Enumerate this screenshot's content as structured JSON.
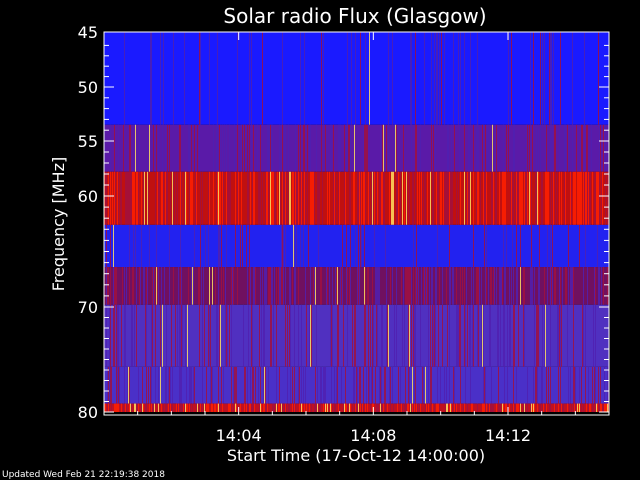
{
  "chart_data": {
    "type": "heatmap",
    "title": "Solar radio Flux (Glasgow)",
    "xlabel": "Start Time (17-Oct-12 14:00:00)",
    "ylabel": "Frequency [MHz]",
    "x_ticks": [
      "14:04",
      "14:08",
      "14:12"
    ],
    "x_tick_minutes": [
      4,
      8,
      12
    ],
    "x_range_minutes": [
      0,
      15
    ],
    "y_ticks": [
      "45",
      "50",
      "55",
      "60",
      "70",
      "80"
    ],
    "y_tick_values": [
      45,
      50,
      55,
      60,
      70,
      80
    ],
    "y_range": [
      45,
      80
    ],
    "bands": [
      {
        "freq_range": [
          45,
          53.5
        ],
        "level": "low",
        "color": "#1a1aff"
      },
      {
        "freq_range": [
          53.5,
          57.8
        ],
        "level": "medium",
        "color": "#5a1aa8"
      },
      {
        "freq_range": [
          57.8,
          62.6
        ],
        "level": "high",
        "color": "#c01010"
      },
      {
        "freq_range": [
          62.6,
          66.4
        ],
        "level": "low",
        "color": "#2222f0"
      },
      {
        "freq_range": [
          66.4,
          69.8
        ],
        "level": "medium-high",
        "color": "#701060"
      },
      {
        "freq_range": [
          69.8,
          75.7
        ],
        "level": "medium",
        "color": "#5030c0"
      },
      {
        "freq_range": [
          75.7,
          79.2
        ],
        "level": "medium",
        "color": "#4a30c8"
      },
      {
        "freq_range": [
          79.2,
          80
        ],
        "level": "high",
        "color": "#c01020"
      }
    ],
    "colormap": [
      "#0000ff",
      "#5020b0",
      "#a01040",
      "#ff2000",
      "#ffe060",
      "#ffffff"
    ]
  },
  "footer": {
    "updated": "Updated Wed Feb 21 22:19:38 2018"
  }
}
